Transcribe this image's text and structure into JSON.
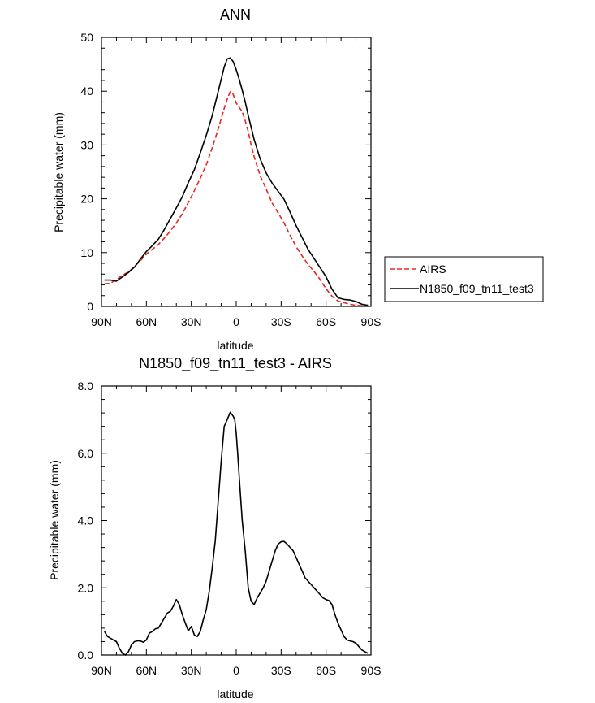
{
  "chart_data": [
    {
      "type": "line",
      "title": "ANN",
      "xlabel": "latitude",
      "ylabel": "Precipitable water (mm)",
      "xlim": [
        90,
        -90
      ],
      "ylim": [
        0,
        50
      ],
      "xticks": [
        90,
        60,
        30,
        0,
        -30,
        -60,
        -90
      ],
      "xtick_labels": [
        "90N",
        "60N",
        "30N",
        "0",
        "30S",
        "60S",
        "90S"
      ],
      "yticks": [
        0,
        10,
        20,
        30,
        40,
        50
      ],
      "ytick_labels": [
        "0",
        "10",
        "20",
        "30",
        "40",
        "50"
      ],
      "legend": "right, outside",
      "series": [
        {
          "name": "AIRS",
          "color": "#e8281e",
          "dash": "dashed",
          "x": [
            88,
            84,
            80,
            76,
            72,
            68,
            64,
            60,
            56,
            52,
            48,
            44,
            40,
            36,
            32,
            28,
            24,
            20,
            16,
            12,
            8,
            6,
            4,
            2,
            0,
            -2,
            -4,
            -6,
            -8,
            -10,
            -12,
            -16,
            -20,
            -24,
            -28,
            -32,
            -36,
            -40,
            -44,
            -48,
            -52,
            -56,
            -60,
            -64,
            -68,
            -72,
            -76,
            -80,
            -84,
            -88
          ],
          "y": [
            4.2,
            4.3,
            5,
            5.8,
            6.4,
            7.4,
            8.5,
            9.7,
            10.6,
            11.5,
            12.7,
            14,
            15.5,
            17.2,
            19.3,
            21.5,
            23.8,
            26.3,
            29.5,
            33,
            36.8,
            38.5,
            39.9,
            39.4,
            37.8,
            37,
            36.2,
            34.5,
            32.5,
            30,
            27.8,
            24.3,
            21.8,
            19.2,
            17.4,
            15.5,
            13.2,
            11.1,
            9.4,
            7.8,
            6.5,
            5,
            3.3,
            1.9,
            1,
            0.7,
            0.4,
            0.2,
            0.1,
            0.1
          ]
        },
        {
          "name": "N1850_f09_tn11_test3",
          "color": "#000000",
          "dash": "solid",
          "x": [
            88,
            84,
            80,
            76,
            72,
            68,
            64,
            60,
            56,
            52,
            48,
            44,
            40,
            36,
            32,
            28,
            24,
            20,
            16,
            12,
            8,
            6,
            4,
            2,
            0,
            -2,
            -4,
            -6,
            -8,
            -10,
            -12,
            -16,
            -20,
            -24,
            -28,
            -32,
            -36,
            -40,
            -44,
            -48,
            -52,
            -56,
            -60,
            -64,
            -68,
            -72,
            -76,
            -80,
            -84,
            -88
          ],
          "y": [
            4.9,
            4.9,
            4.7,
            5.5,
            6.3,
            7.3,
            8.8,
            10.2,
            11.3,
            12.5,
            14.3,
            16.3,
            18.3,
            20.4,
            23,
            25.4,
            28.5,
            31.8,
            35.5,
            40,
            44.5,
            46,
            46.2,
            45.5,
            44,
            42.2,
            40.2,
            38,
            35.5,
            33.3,
            31,
            27.4,
            24.8,
            22.9,
            21.4,
            19.9,
            17.5,
            15,
            12.8,
            10.6,
            8.9,
            7.2,
            5.5,
            3.2,
            1.6,
            1.3,
            1.2,
            0.9,
            0.4,
            0.2
          ]
        }
      ]
    },
    {
      "type": "line",
      "title": "N1850_f09_tn11_test3 - AIRS",
      "xlabel": "latitude",
      "ylabel": "Precipitable water (mm)",
      "xlim": [
        90,
        -90
      ],
      "ylim": [
        0,
        8
      ],
      "xticks": [
        90,
        60,
        30,
        0,
        -30,
        -60,
        -90
      ],
      "xtick_labels": [
        "90N",
        "60N",
        "30N",
        "0",
        "30S",
        "60S",
        "90S"
      ],
      "yticks": [
        0,
        2,
        4,
        6,
        8
      ],
      "ytick_labels": [
        "0.0",
        "2.0",
        "4.0",
        "6.0",
        "8.0"
      ],
      "series": [
        {
          "name": "N1850_f09_tn11_test3 - AIRS",
          "color": "#000000",
          "dash": "solid",
          "x": [
            88,
            86,
            84,
            82,
            80,
            78,
            76,
            74,
            72,
            70,
            68,
            66,
            64,
            62,
            60,
            58,
            56,
            54,
            52,
            50,
            48,
            46,
            44,
            42,
            40,
            38,
            36,
            34,
            32,
            30,
            28,
            26,
            24,
            22,
            20,
            18,
            16,
            14,
            12,
            10,
            8,
            6,
            4,
            2,
            1,
            0,
            -1,
            -2,
            -4,
            -6,
            -8,
            -10,
            -12,
            -14,
            -16,
            -18,
            -20,
            -22,
            -24,
            -26,
            -28,
            -30,
            -32,
            -34,
            -36,
            -38,
            -40,
            -42,
            -44,
            -46,
            -48,
            -50,
            -52,
            -54,
            -56,
            -58,
            -60,
            -62,
            -64,
            -66,
            -68,
            -70,
            -72,
            -74,
            -76,
            -78,
            -80,
            -82,
            -84,
            -86,
            -88
          ],
          "y": [
            0.7,
            0.55,
            0.5,
            0.45,
            0.4,
            0.2,
            0.05,
            0,
            0.1,
            0.3,
            0.4,
            0.42,
            0.42,
            0.38,
            0.45,
            0.65,
            0.7,
            0.78,
            0.8,
            0.95,
            1.1,
            1.25,
            1.3,
            1.45,
            1.65,
            1.5,
            1.2,
            0.95,
            0.72,
            0.85,
            0.6,
            0.55,
            0.7,
            1.05,
            1.35,
            1.9,
            2.6,
            3.4,
            4.6,
            5.8,
            6.8,
            7.0,
            7.22,
            7.1,
            7.0,
            6.6,
            6.0,
            5.3,
            4.0,
            3.1,
            2.0,
            1.6,
            1.5,
            1.7,
            1.85,
            2.0,
            2.2,
            2.5,
            2.8,
            3.1,
            3.3,
            3.37,
            3.38,
            3.3,
            3.2,
            3.1,
            2.9,
            2.7,
            2.5,
            2.3,
            2.2,
            2.1,
            2.0,
            1.9,
            1.8,
            1.7,
            1.65,
            1.62,
            1.5,
            1.2,
            0.95,
            0.75,
            0.55,
            0.45,
            0.42,
            0.4,
            0.35,
            0.25,
            0.15,
            0.1,
            0.05
          ]
        }
      ]
    }
  ]
}
